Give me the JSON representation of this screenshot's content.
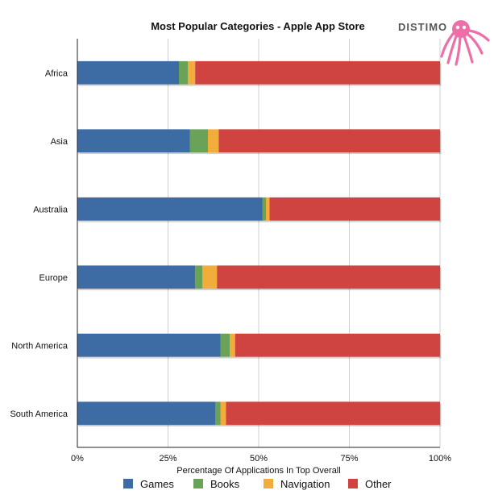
{
  "brand": {
    "logo_text": "DISTIMO",
    "logo_color": "#ee6fa8"
  },
  "chart_data": {
    "type": "bar",
    "orientation": "horizontal",
    "stacked": true,
    "title": "Most Popular Categories - Apple App Store",
    "xlabel": "Percentage Of Applications In Top Overall",
    "ylabel": "",
    "xlim": [
      0,
      100
    ],
    "x_ticks": [
      0,
      25,
      50,
      75,
      100
    ],
    "x_tick_labels": [
      "0%",
      "25%",
      "50%",
      "75%",
      "100%"
    ],
    "grid": true,
    "legend": "bottom",
    "categories": [
      "Africa",
      "Asia",
      "Australia",
      "Europe",
      "North America",
      "South America"
    ],
    "series": [
      {
        "name": "Games",
        "color": "#3d6ba4",
        "values": [
          28,
          31,
          51,
          32.5,
          39.5,
          38
        ]
      },
      {
        "name": "Books",
        "color": "#6aa25a",
        "values": [
          2.5,
          5,
          1,
          2,
          2.5,
          1.5
        ]
      },
      {
        "name": "Navigation",
        "color": "#f0ad3c",
        "values": [
          2,
          3,
          1,
          4,
          1.5,
          1.5
        ]
      },
      {
        "name": "Other",
        "color": "#cf4440",
        "values": [
          67.5,
          61,
          47,
          61.5,
          56.5,
          59
        ]
      }
    ]
  }
}
